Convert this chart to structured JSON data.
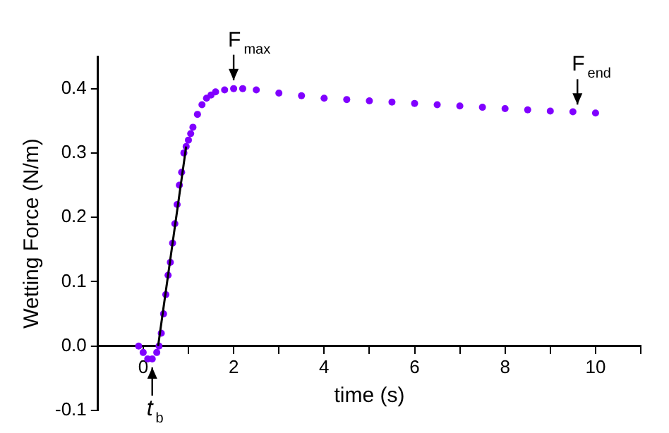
{
  "chart_data": {
    "type": "scatter",
    "xlabel": "time (s)",
    "ylabel": "Wetting Force (N/m)",
    "xlim": [
      -1,
      11
    ],
    "ylim": [
      -0.1,
      0.45
    ],
    "xticks": [
      {
        "value": -1,
        "label": null
      },
      0,
      {
        "value": 1,
        "label": null
      },
      2,
      {
        "value": 3,
        "label": null
      },
      4,
      {
        "value": 5,
        "label": null
      },
      6,
      {
        "value": 7,
        "label": null
      },
      8,
      {
        "value": 9,
        "label": null
      },
      10,
      {
        "value": 11,
        "label": null
      }
    ],
    "yticks": [
      {
        "value": -0.1,
        "label": "-0.1"
      },
      {
        "value": 0,
        "label": "0.0"
      },
      {
        "value": 0.1,
        "label": "0.1"
      },
      {
        "value": 0.2,
        "label": "0.2"
      },
      {
        "value": 0.3,
        "label": "0.3"
      },
      {
        "value": 0.4,
        "label": "0.4"
      }
    ],
    "grid": false,
    "legend": false,
    "marker": "circle",
    "series": [
      {
        "color": "#8000ff",
        "x": [
          -0.1,
          0,
          0.1,
          0.2,
          0.3,
          0.35,
          0.4,
          0.45,
          0.5,
          0.55,
          0.6,
          0.65,
          0.7,
          0.75,
          0.8,
          0.85,
          0.9,
          0.95,
          1.0,
          1.05,
          1.1,
          1.2,
          1.3,
          1.4,
          1.5,
          1.6,
          1.8,
          2.0,
          2.2,
          2.5,
          3,
          3.5,
          4,
          4.5,
          5,
          5.5,
          6,
          6.5,
          7,
          7.5,
          8,
          8.5,
          9,
          9.5,
          10
        ],
        "values": [
          0,
          -0.01,
          -0.02,
          -0.02,
          -0.01,
          0,
          0.02,
          0.05,
          0.08,
          0.11,
          0.13,
          0.16,
          0.19,
          0.22,
          0.25,
          0.27,
          0.3,
          0.31,
          0.32,
          0.33,
          0.34,
          0.36,
          0.375,
          0.385,
          0.39,
          0.395,
          0.398,
          0.4,
          0.4,
          0.398,
          0.393,
          0.389,
          0.385,
          0.383,
          0.381,
          0.379,
          0.377,
          0.375,
          0.373,
          0.371,
          0.369,
          0.367,
          0.365,
          0.364,
          0.362
        ]
      },
      {
        "type": "line",
        "color": "#000000",
        "marker": "none",
        "x": [
          0.33,
          0.95
        ],
        "values": [
          0,
          0.31
        ]
      }
    ],
    "annotations": [
      {
        "text": "F$_{max}$",
        "x": 2,
        "y": 0.4
      },
      {
        "text": "F$_{end}$",
        "x": 9.6,
        "y": 0.362
      },
      {
        "text": "t$_{b}$",
        "x": 0.2,
        "y": -0.02
      }
    ]
  }
}
